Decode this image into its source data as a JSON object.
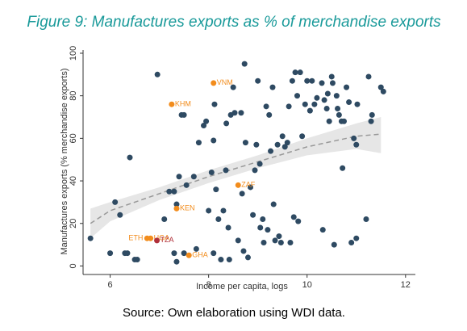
{
  "chart_data": {
    "type": "scatter",
    "title": "Figure 9: Manufactures exports as % of merchandise exports",
    "x_label": "Income per capita, logs",
    "y_label": "Manufactures exports (% merchandise exports)",
    "source": "Source: Own elaboration using WDI data.",
    "xlim": [
      5.45,
      12.2
    ],
    "xticks": [
      6,
      8,
      10,
      12
    ],
    "ylim": [
      -4,
      101.5
    ],
    "yticks": [
      0,
      20,
      40,
      60,
      80,
      100
    ],
    "series": [
      {
        "color": "#2e4a62",
        "x": [
          5.6,
          6.1,
          6.2,
          6.4,
          6.3,
          6.35,
          6.5,
          6.55,
          6.0,
          6.96,
          7.1,
          7.2,
          7.3,
          7.4,
          7.35,
          7.3,
          7.35,
          7.45,
          7.5,
          7.5,
          7.55,
          7.7,
          7.75,
          7.8,
          7.9,
          7.95,
          8.0,
          8.06,
          8.1,
          8.1,
          8.12,
          8.15,
          8.2,
          8.25,
          8.3,
          8.35,
          8.36,
          8.4,
          8.42,
          8.45,
          8.5,
          8.53,
          8.6,
          8.66,
          8.68,
          8.71,
          8.73,
          8.75,
          8.8,
          8.85,
          8.9,
          8.94,
          8.97,
          9.0,
          9.04,
          9.05,
          9.1,
          9.12,
          9.17,
          9.2,
          9.23,
          9.26,
          9.3,
          9.32,
          9.35,
          9.4,
          9.43,
          9.47,
          9.5,
          9.55,
          9.6,
          9.63,
          9.66,
          9.7,
          9.73,
          9.76,
          9.8,
          9.82,
          9.86,
          9.9,
          9.96,
          10.0,
          10.06,
          10.1,
          10.15,
          10.2,
          10.3,
          10.32,
          10.35,
          10.4,
          10.42,
          10.45,
          10.5,
          10.52,
          10.55,
          10.6,
          10.62,
          10.65,
          10.7,
          10.72,
          10.75,
          10.8,
          10.85,
          10.9,
          10.95,
          11.0,
          11.25,
          11.2,
          11.3,
          11.32,
          11.5,
          11.55,
          11.02,
          11.0
        ],
        "values": [
          13,
          30,
          24,
          51,
          6,
          6,
          3,
          3,
          6,
          90,
          22,
          35,
          35,
          42,
          29,
          6,
          2,
          71,
          71,
          6,
          38,
          42,
          8,
          58,
          66,
          68,
          26,
          44,
          6,
          59,
          76,
          36,
          22,
          3,
          26,
          45,
          67,
          18,
          3,
          71,
          84,
          72,
          12,
          72,
          34,
          7,
          95,
          58,
          4,
          37,
          24,
          45,
          57,
          87,
          48,
          18,
          22,
          11,
          75,
          17,
          71,
          54,
          84,
          29,
          12,
          57,
          14,
          11,
          61,
          56,
          58,
          75,
          11,
          87,
          23,
          91,
          80,
          21,
          91,
          61,
          76,
          87,
          73,
          87,
          76,
          79,
          86,
          17,
          78,
          74,
          81,
          68,
          89,
          86,
          10,
          80,
          74,
          71,
          68,
          46,
          68,
          84,
          77,
          11,
          60,
          57,
          89,
          22,
          68,
          71,
          84,
          82,
          76,
          13
        ]
      },
      {
        "color": "#f28c1c",
        "x": [
          8.1,
          7.25,
          8.6,
          7.35,
          6.82,
          6.75,
          6.95,
          7.6
        ],
        "values": [
          86,
          76,
          38,
          27,
          13,
          13,
          12,
          5
        ],
        "labels": [
          "VNM",
          "KHM",
          "ZAF",
          "KEN",
          "UGA",
          "ETH",
          "TZA",
          "GHA"
        ],
        "label_colors": [
          "#f28c1c",
          "#f28c1c",
          "#f28c1c",
          "#f28c1c",
          "#f28c1c",
          "#f28c1c",
          "#b0303a",
          "#f28c1c"
        ],
        "colors": [
          "#f28c1c",
          "#f28c1c",
          "#f28c1c",
          "#f28c1c",
          "#f28c1c",
          "#f28c1c",
          "#b0303a",
          "#f28c1c"
        ]
      }
    ],
    "fit": {
      "x": [
        5.6,
        6,
        7,
        8,
        9,
        10,
        11,
        11.5
      ],
      "values": [
        20,
        26,
        34,
        42,
        49,
        56,
        61,
        62
      ],
      "lower": [
        13,
        21,
        31,
        39,
        46,
        52,
        55,
        53
      ],
      "upper": [
        27,
        30,
        37,
        45,
        52,
        60,
        67,
        70
      ],
      "color": "#999999",
      "band_color": "#e6e6e6"
    }
  }
}
